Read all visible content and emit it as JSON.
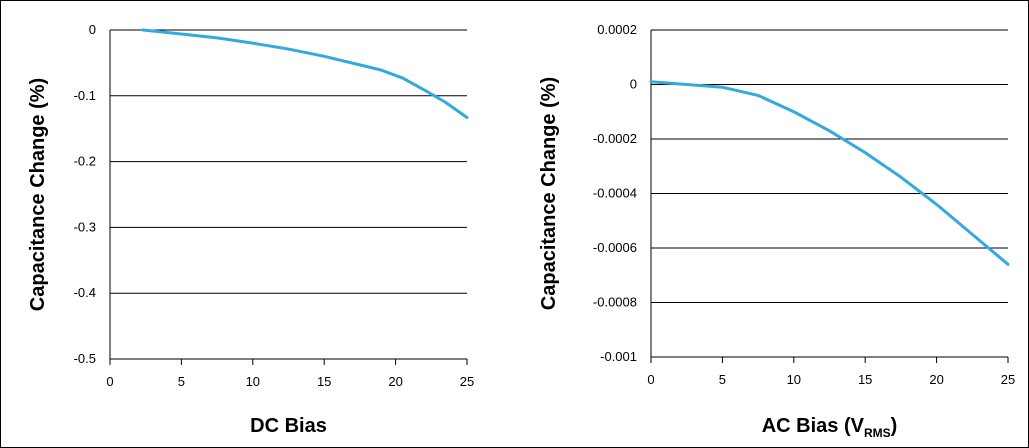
{
  "chart_data": [
    {
      "type": "line",
      "title": "",
      "xlabel": "DC Bias",
      "ylabel": "Capacitance Change (%)",
      "xlim": [
        0,
        25
      ],
      "ylim": [
        -0.5,
        0
      ],
      "xticks": [
        0,
        5,
        10,
        15,
        20,
        25
      ],
      "yticks": [
        0,
        -0.1,
        -0.2,
        -0.3,
        -0.4,
        -0.5
      ],
      "xtick_labels": [
        "0",
        "5",
        "10",
        "15",
        "20",
        "25"
      ],
      "ytick_labels": [
        "0",
        "-0.1",
        "-0.2",
        "-0.3",
        "-0.4",
        "-0.5"
      ],
      "grid": "horizontal",
      "line_color": "#33aadd",
      "series": [
        {
          "x": [
            2.3,
            5,
            7.5,
            10,
            12.5,
            15,
            17.5,
            19,
            20.5,
            22,
            23.5,
            25
          ],
          "y": [
            0,
            -0.006,
            -0.012,
            -0.02,
            -0.029,
            -0.04,
            -0.053,
            -0.061,
            -0.073,
            -0.091,
            -0.11,
            -0.133
          ]
        }
      ]
    },
    {
      "type": "line",
      "title": "",
      "xlabel": "AC Bias (V",
      "xlabel_sub": "RMS",
      "xlabel_end": ")",
      "ylabel": "Capacitance Change (%)",
      "xlim": [
        0,
        25
      ],
      "ylim": [
        -0.001,
        0.0002
      ],
      "xticks": [
        0,
        5,
        10,
        15,
        20,
        25
      ],
      "yticks": [
        0.0002,
        0,
        -0.0002,
        -0.0004,
        -0.0006,
        -0.0008,
        -0.001
      ],
      "xtick_labels": [
        "0",
        "5",
        "10",
        "15",
        "20",
        "25"
      ],
      "ytick_labels": [
        "0.0002",
        "0",
        "-0.0002",
        "-0.0004",
        "-0.0006",
        "-0.0008",
        "-0.001"
      ],
      "grid": "horizontal",
      "line_color": "#33aadd",
      "series": [
        {
          "x": [
            0,
            2.5,
            5,
            7.5,
            10,
            12.5,
            15,
            17.5,
            20,
            22.5,
            25
          ],
          "y": [
            1e-05,
            0,
            -1e-05,
            -4e-05,
            -0.0001,
            -0.00017,
            -0.00025,
            -0.00034,
            -0.00044,
            -0.00055,
            -0.00066
          ]
        }
      ]
    }
  ]
}
